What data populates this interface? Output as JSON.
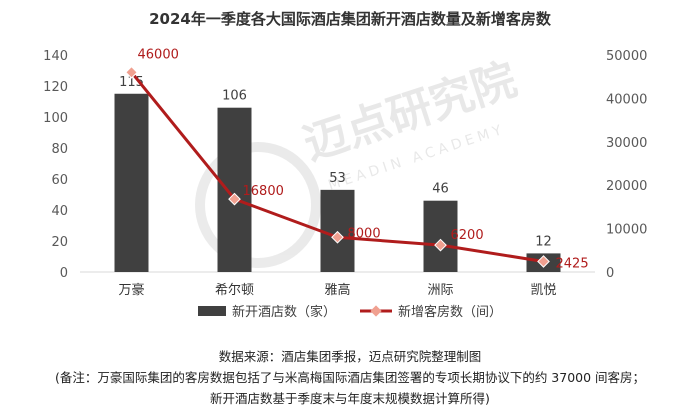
{
  "chart_data": {
    "type": "bar",
    "title": "2024年一季度各大国际酒店集团新开酒店数量及新增客房数",
    "categories": [
      "万豪",
      "希尔顿",
      "雅高",
      "洲际",
      "凯悦"
    ],
    "series": [
      {
        "name": "新开酒店数（家）",
        "type": "bar",
        "axis": "left",
        "values": [
          115,
          106,
          53,
          46,
          12
        ],
        "color": "#404040"
      },
      {
        "name": "新增客房数（间）",
        "type": "line",
        "axis": "right",
        "values": [
          46000,
          16800,
          8000,
          6200,
          2425
        ],
        "color": "#b01c1c"
      }
    ],
    "left_axis": {
      "ylim": [
        0,
        140
      ],
      "ticks": [
        0,
        20,
        40,
        60,
        80,
        100,
        120,
        140
      ]
    },
    "right_axis": {
      "ylim": [
        0,
        50000
      ],
      "ticks": [
        0,
        10000,
        20000,
        30000,
        40000,
        50000
      ]
    },
    "grid": false,
    "legend": "bottom"
  },
  "watermark": {
    "text_cn": "迈点研究院",
    "text_en": "MEADIN ACADEMY"
  },
  "footer": {
    "source": "数据来源：酒店集团季报，迈点研究院整理制图",
    "note_line1": "(备注：万豪国际集团的客房数据包括了与米高梅国际酒店集团签署的专项长期协议下的约 37000 间客房；",
    "note_line2": "新开酒店数基于季度末与年度末规模数据计算所得)"
  },
  "colors": {
    "bar": "#404040",
    "line": "#b01c1c",
    "marker": "#f0a090"
  }
}
